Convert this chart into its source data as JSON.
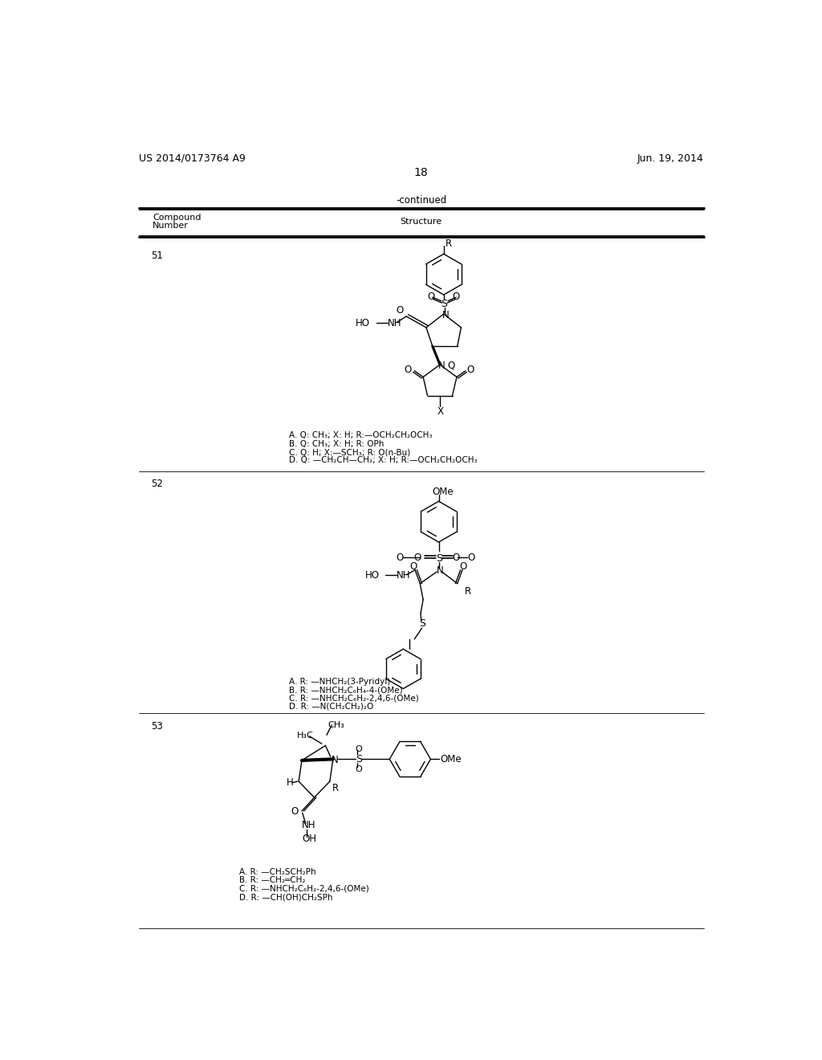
{
  "background_color": "#ffffff",
  "header_left": "US 2014/0173764 A9",
  "header_right": "Jun. 19, 2014",
  "page_number": "18",
  "continued_text": "-continued",
  "compound_51_variants": [
    "A. Q: CH₃; X: H; R:—OCH₂CH₂OCH₃",
    "B. Q: CH₃; X: H; R: OPh",
    "C. Q: H; X:—SCH₃; R: O(n-Bu)",
    "D. Q: —CH₂CH—CH₂; X: H; R:—OCH₂CH₂OCH₃"
  ],
  "compound_52_variants": [
    "A. R: —NHCH₂(3-Pyridyl)",
    "B. R: —NHCH₂C₆H₄-4-(OMe)",
    "C. R: —NHCH₂C₆H₂-2,4,6-(OMe)",
    "D. R: —N(CH₂CH₂)₂O"
  ],
  "compound_53_variants": [
    "A. R: —CH₂SCH₂Ph",
    "B. R: —CH₂═CH₂",
    "C. R: —NHCH₂C₆H₂-2,4,6-(OMe)",
    "D. R: —CH(OH)CH₂SPh"
  ]
}
